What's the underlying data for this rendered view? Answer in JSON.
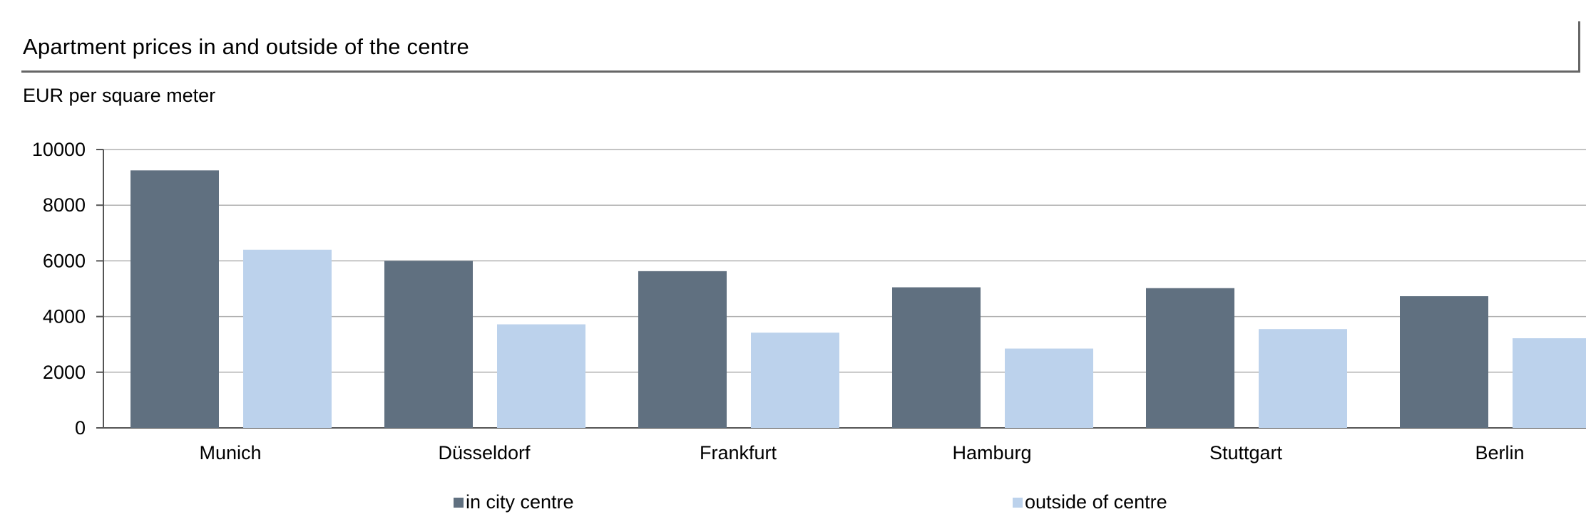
{
  "header": {
    "title": "Apartment prices in and outside of the centre",
    "subtitle": "EUR per square meter"
  },
  "legend": {
    "items": [
      {
        "label": "in city centre",
        "color": "#607080"
      },
      {
        "label": "outside of centre",
        "color": "#bcd2ec"
      }
    ]
  },
  "chart_data": {
    "type": "bar",
    "title": "Apartment prices in and outside of the centre",
    "subtitle": "EUR per square meter",
    "xlabel": "",
    "ylabel": "EUR per square meter",
    "categories": [
      "Munich",
      "Düsseldorf",
      "Frankfurt",
      "Hamburg",
      "Stuttgart",
      "Berlin"
    ],
    "series": [
      {
        "name": "in city centre",
        "color": "#607080",
        "values": [
          9250,
          6000,
          5630,
          5050,
          5020,
          4730
        ]
      },
      {
        "name": "outside of centre",
        "color": "#bcd2ec",
        "values": [
          6400,
          3720,
          3420,
          2850,
          3550,
          3220
        ]
      }
    ],
    "ylim": [
      0,
      10000
    ],
    "yticks": [
      "0",
      "2000",
      "4000",
      "6000",
      "8000",
      "10000"
    ],
    "grid": true,
    "legend_position": "bottom"
  }
}
